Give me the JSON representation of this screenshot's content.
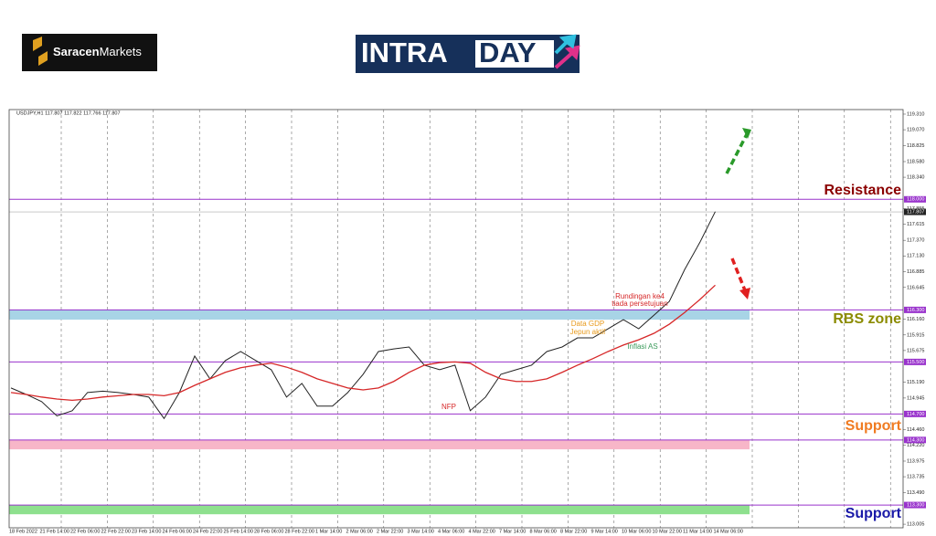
{
  "header": {
    "brand_bold": "Saracen",
    "brand_light": "Markets",
    "title_light": "INTRA",
    "title_dark": "DAY"
  },
  "chart_data": {
    "type": "line",
    "symbol_info": "USDJPY,H1 117.807 117.822 117.766 117.807",
    "categories": [
      "18 Feb 2022",
      null,
      "21 Feb 14:00",
      null,
      "22 Feb 06:00",
      null,
      "22 Feb 22:00",
      null,
      "23 Feb 14:00",
      null,
      "24 Feb 06:00",
      null,
      "24 Feb 22:00",
      null,
      "25 Feb 14:00",
      null,
      "28 Feb 06:00",
      null,
      "28 Feb 22:00",
      null,
      "1 Mar 14:00",
      null,
      "2 Mar 06:00",
      null,
      "2 Mar 22:00",
      null,
      "3 Mar 14:00",
      null,
      "4 Mar 06:00",
      null,
      "4 Mar 22:00",
      null,
      "7 Mar 14:00",
      null,
      "8 Mar 06:00",
      null,
      "8 Mar 22:00",
      null,
      "9 Mar 14:00",
      null,
      "10 Mar 06:00",
      null,
      "10 Mar 22:00",
      null,
      "11 Mar 14:00",
      null,
      "14 Mar 06:00"
    ],
    "series": [
      {
        "color": "#222222",
        "values": [
          115.1,
          115.0,
          114.89,
          114.67,
          114.75,
          115.03,
          115.05,
          115.03,
          115.0,
          114.96,
          114.63,
          115.03,
          115.59,
          115.24,
          115.52,
          115.66,
          115.52,
          115.38,
          114.96,
          115.17,
          114.82,
          114.82,
          115.03,
          115.31,
          115.66,
          115.7,
          115.73,
          115.45,
          115.38,
          115.45,
          114.75,
          114.96,
          115.31,
          115.38,
          115.45,
          115.66,
          115.73,
          115.87,
          115.87,
          116.01,
          116.15,
          116.01,
          116.22,
          116.43,
          116.92,
          117.34,
          117.81
        ]
      },
      {
        "color": "#d62728",
        "values": [
          115.03,
          115.0,
          114.96,
          114.93,
          114.91,
          114.93,
          114.96,
          114.98,
          115.0,
          115.0,
          114.98,
          115.03,
          115.14,
          115.24,
          115.34,
          115.41,
          115.45,
          115.48,
          115.42,
          115.34,
          115.24,
          115.17,
          115.1,
          115.07,
          115.1,
          115.2,
          115.34,
          115.45,
          115.49,
          115.5,
          115.48,
          115.34,
          115.24,
          115.2,
          115.2,
          115.24,
          115.34,
          115.45,
          115.55,
          115.66,
          115.76,
          115.84,
          115.94,
          116.08,
          116.26,
          116.46,
          116.68
        ]
      }
    ],
    "ylim": [
      112.95,
      119.38
    ],
    "yticks": [
      {
        "value": 119.31,
        "label": "119.310"
      },
      {
        "value": 119.07,
        "label": "119.070"
      },
      {
        "value": 118.825,
        "label": "118.825"
      },
      {
        "value": 118.58,
        "label": "118.580"
      },
      {
        "value": 118.34,
        "label": "118.340"
      },
      {
        "value": 117.855,
        "label": "117.855"
      },
      {
        "value": 117.615,
        "label": "117.615"
      },
      {
        "value": 117.37,
        "label": "117.370"
      },
      {
        "value": 117.13,
        "label": "117.130"
      },
      {
        "value": 116.885,
        "label": "116.885"
      },
      {
        "value": 116.645,
        "label": "116.645"
      },
      {
        "value": 116.16,
        "label": "116.160"
      },
      {
        "value": 115.915,
        "label": "115.915"
      },
      {
        "value": 115.675,
        "label": "115.675"
      },
      {
        "value": 115.19,
        "label": "115.190"
      },
      {
        "value": 114.945,
        "label": "114.945"
      },
      {
        "value": 114.46,
        "label": "114.460"
      },
      {
        "value": 114.22,
        "label": "114.220"
      },
      {
        "value": 113.975,
        "label": "113.975"
      },
      {
        "value": 113.735,
        "label": "113.735"
      },
      {
        "value": 113.49,
        "label": "113.490"
      },
      {
        "value": 113.005,
        "label": "113.005"
      }
    ],
    "levels": [
      {
        "value": 118.0,
        "label": "118.000"
      },
      {
        "value": 116.3,
        "label": "116.300"
      },
      {
        "value": 115.5,
        "label": "115.500"
      },
      {
        "value": 114.7,
        "label": "114.700"
      },
      {
        "value": 114.3,
        "label": "114.300"
      },
      {
        "value": 113.3,
        "label": "113.300"
      }
    ],
    "level_color": "#9933cc",
    "current_price": {
      "value": 117.807,
      "label": "117.807"
    },
    "zones": [
      {
        "from": 116.15,
        "to": 116.3,
        "color": "#a8d4e6"
      },
      {
        "from": 114.156,
        "to": 114.3,
        "color": "#f7b6c8"
      },
      {
        "from": 113.158,
        "to": 113.3,
        "color": "#8ee08e"
      }
    ],
    "zone_labels": [
      {
        "text": "Resistance",
        "color": "#8b0000"
      },
      {
        "text": "RBS zone",
        "color": "#8b8b00"
      },
      {
        "text": "Support",
        "color": "#f07b22"
      },
      {
        "text": "Support",
        "color": "#1a1aa8"
      }
    ],
    "annotations": [
      {
        "text": "Rundingan ke4",
        "color": "#d62728"
      },
      {
        "text": "tiada persetujuan",
        "color": "#d62728"
      },
      {
        "text": "Data GDP",
        "color": "#e89a1c"
      },
      {
        "text": "Jepun aktif",
        "color": "#e89a1c"
      },
      {
        "text": "Inflasi AS",
        "color": "#3a9a5a"
      },
      {
        "text": "NFP",
        "color": "#d62728"
      }
    ]
  }
}
